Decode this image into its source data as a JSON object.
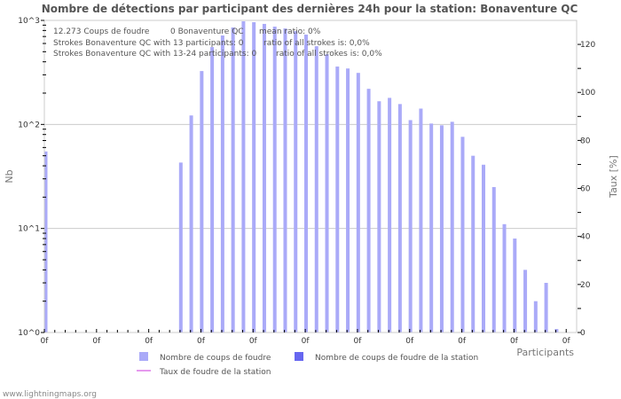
{
  "title": "Nombre de détections par participant des dernières 24h pour la station: Bonaventure QC",
  "info_lines": [
    {
      "a": "12.273  Coups de foudre",
      "b": "0 Bonaventure QC",
      "c": "mean ratio: 0%"
    },
    {
      "a": "Strokes Bonaventure QC with 13 participants: 0",
      "c": "ratio of all strokes is: 0,0%"
    },
    {
      "a": "Strokes Bonaventure QC with 13-24 participants: 0",
      "c": "ratio of all strokes is: 0,0%"
    }
  ],
  "legend": {
    "total": "Nombre de coups de foudre",
    "station": "Nombre de coups de foudre de la station",
    "rate": "Taux de foudre de la station"
  },
  "footer": "www.lightningmaps.org",
  "colors": {
    "total": "#aaaaf8",
    "station": "#6666f0",
    "rate": "#e699ee",
    "grid": "#cccccc",
    "frame": "#cccccc"
  },
  "chart_data": {
    "type": "bar",
    "title": "Nombre de détections par participant des dernières 24h pour la station: Bonaventure QC",
    "xlabel": "Participants",
    "ylabel": "Nb",
    "y2label": "Taux [%]",
    "yscale": "log",
    "ylim": [
      1,
      1000
    ],
    "y_ticks": [
      "10^0",
      "10^1",
      "10^2",
      "10^3"
    ],
    "y2lim": [
      0,
      130
    ],
    "y2_ticks": [
      0,
      20,
      40,
      60,
      80,
      100,
      120
    ],
    "x_tick_labels": [
      "0f",
      "0f",
      "0f",
      "0f",
      "0f",
      "0f",
      "0f",
      "0f",
      "0f",
      "0f",
      "0f"
    ],
    "grid": true,
    "legend_position": "bottom",
    "bins": 50,
    "series": [
      {
        "name": "Nombre de coups de foudre",
        "values": [
          55,
          0,
          0,
          0,
          0,
          0,
          0,
          0,
          0,
          0,
          0,
          0,
          0,
          43,
          122,
          326,
          554,
          716,
          855,
          980,
          961,
          925,
          871,
          837,
          789,
          730,
          565,
          473,
          360,
          345,
          313,
          220,
          167,
          180,
          157,
          110,
          142,
          102,
          98,
          106,
          76,
          50,
          41,
          25,
          11,
          8,
          4,
          2,
          3,
          1
        ]
      },
      {
        "name": "Nombre de coups de foudre de la station",
        "values": [
          0,
          0,
          0,
          0,
          0,
          0,
          0,
          0,
          0,
          0,
          0,
          0,
          0,
          0,
          0,
          0,
          0,
          0,
          0,
          0,
          0,
          0,
          0,
          0,
          0,
          0,
          0,
          0,
          0,
          0,
          0,
          0,
          0,
          0,
          0,
          0,
          0,
          0,
          0,
          0,
          0,
          0,
          0,
          0,
          0,
          0,
          0,
          0,
          0,
          0
        ]
      },
      {
        "name": "Taux de foudre de la station",
        "type": "line",
        "axis": "y2",
        "values": [
          0,
          0,
          0,
          0,
          0,
          0,
          0,
          0,
          0,
          0,
          0,
          0,
          0,
          0,
          0,
          0,
          0,
          0,
          0,
          0,
          0,
          0,
          0,
          0,
          0,
          0,
          0,
          0,
          0,
          0,
          0,
          0,
          0,
          0,
          0,
          0,
          0,
          0,
          0,
          0,
          0,
          0,
          0,
          0,
          0,
          0,
          0,
          0,
          0,
          0
        ]
      }
    ]
  }
}
